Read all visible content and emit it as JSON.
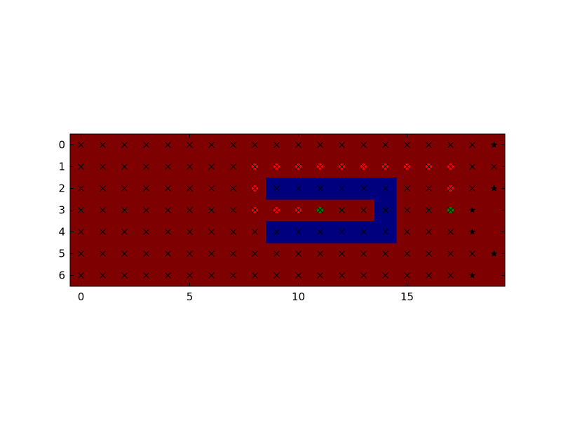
{
  "chart_data": {
    "type": "heatmap",
    "title": "",
    "xlabel": "",
    "ylabel": "",
    "xlim": [
      -0.5,
      19.5
    ],
    "ylim": [
      6.5,
      -0.5
    ],
    "x_ticks": [
      0,
      5,
      10,
      15
    ],
    "y_ticks": [
      0,
      1,
      2,
      3,
      4,
      5,
      6
    ],
    "grid": false,
    "rows": 7,
    "cols": 20,
    "background_color": "#7f0000",
    "obstacle_color": "#00007f",
    "obstacle_cells": [
      [
        2,
        9
      ],
      [
        2,
        10
      ],
      [
        2,
        11
      ],
      [
        2,
        12
      ],
      [
        2,
        13
      ],
      [
        2,
        14
      ],
      [
        3,
        14
      ],
      [
        4,
        9
      ],
      [
        4,
        10
      ],
      [
        4,
        11
      ],
      [
        4,
        12
      ],
      [
        4,
        13
      ],
      [
        4,
        14
      ]
    ],
    "markers": {
      "x_color": "#000000",
      "star_color": "#000000",
      "path_color": "#ff0000",
      "start_goal_color": "#008000",
      "star_cells": [
        [
          0,
          19
        ],
        [
          2,
          19
        ],
        [
          3,
          18
        ],
        [
          4,
          18
        ],
        [
          5,
          19
        ],
        [
          6,
          18
        ]
      ],
      "empty_cells": [
        [
          3,
          19
        ],
        [
          4,
          19
        ],
        [
          6,
          19
        ]
      ],
      "path_cells": [
        [
          1,
          8
        ],
        [
          1,
          9
        ],
        [
          1,
          10
        ],
        [
          1,
          11
        ],
        [
          1,
          12
        ],
        [
          1,
          13
        ],
        [
          1,
          14
        ],
        [
          1,
          15
        ],
        [
          1,
          16
        ],
        [
          1,
          17
        ],
        [
          2,
          8
        ],
        [
          2,
          17
        ],
        [
          3,
          8
        ],
        [
          3,
          9
        ],
        [
          3,
          10
        ]
      ],
      "start_goal_cells": [
        [
          3,
          11
        ],
        [
          3,
          17
        ]
      ]
    }
  }
}
